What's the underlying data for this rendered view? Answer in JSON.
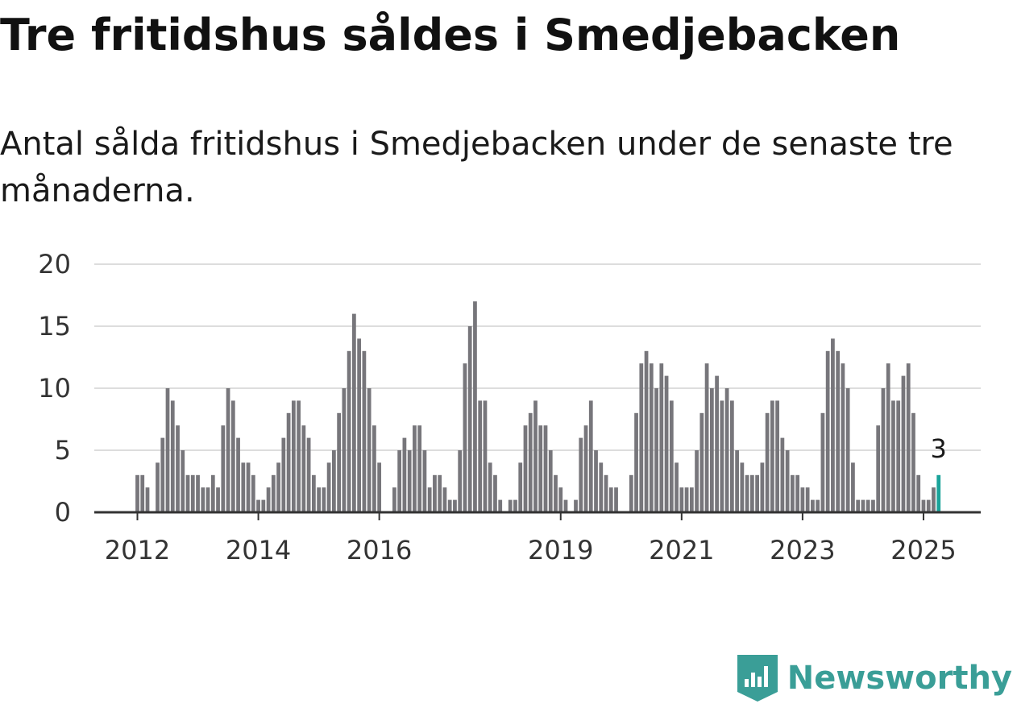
{
  "title": "Tre fritidshus såldes i Smedjebacken",
  "subtitle": "Antal sålda fritidshus i Smedjebacken under de senaste tre månaderna.",
  "brand": {
    "name": "Newsworthy",
    "icon": "newsworthy-logo-icon"
  },
  "colors": {
    "bar": "#77767b",
    "highlight": "#1aa39a",
    "grid": "#dddddd",
    "axis": "#333333",
    "brand": "#3a9e97"
  },
  "chart_data": {
    "type": "bar",
    "start": "2012-01",
    "x_tick_labels": [
      "2012",
      "2014",
      "2016",
      "2019",
      "2021",
      "2023",
      "2025"
    ],
    "y_ticks": [
      0,
      5,
      10,
      15,
      20
    ],
    "ylim": [
      0,
      20
    ],
    "grid": true,
    "highlight_label": "3",
    "values": [
      3,
      3,
      2,
      0,
      4,
      6,
      10,
      9,
      7,
      5,
      3,
      3,
      3,
      2,
      2,
      3,
      2,
      7,
      10,
      9,
      6,
      4,
      4,
      3,
      1,
      1,
      2,
      3,
      4,
      6,
      8,
      9,
      9,
      7,
      6,
      3,
      2,
      2,
      4,
      5,
      8,
      10,
      13,
      16,
      14,
      13,
      10,
      7,
      4,
      0,
      0,
      2,
      5,
      6,
      5,
      7,
      7,
      5,
      2,
      3,
      3,
      2,
      1,
      1,
      5,
      12,
      15,
      17,
      9,
      9,
      4,
      3,
      1,
      0,
      1,
      1,
      4,
      7,
      8,
      9,
      7,
      7,
      5,
      3,
      2,
      1,
      0,
      1,
      6,
      7,
      9,
      5,
      4,
      3,
      2,
      2,
      0,
      0,
      3,
      8,
      12,
      13,
      12,
      10,
      12,
      11,
      9,
      4,
      2,
      2,
      2,
      5,
      8,
      12,
      10,
      11,
      9,
      10,
      9,
      5,
      4,
      3,
      3,
      3,
      4,
      8,
      9,
      9,
      6,
      5,
      3,
      3,
      2,
      2,
      1,
      1,
      8,
      13,
      14,
      13,
      12,
      10,
      4,
      1,
      1,
      1,
      1,
      7,
      10,
      12,
      9,
      9,
      11,
      12,
      8,
      3,
      1,
      1,
      2,
      3
    ]
  }
}
